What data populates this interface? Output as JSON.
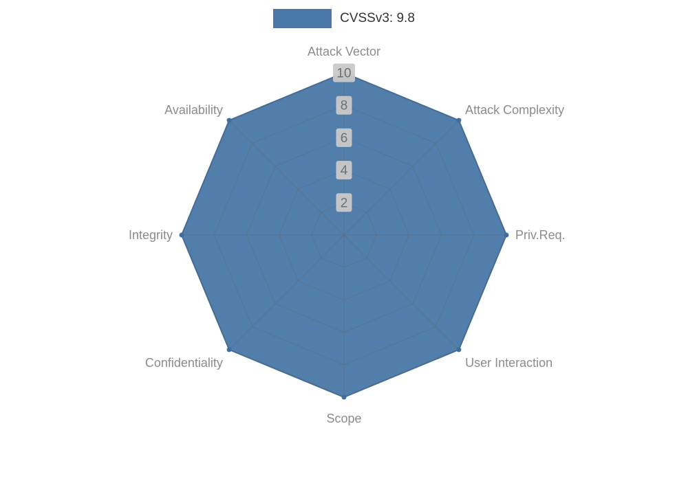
{
  "legend": {
    "label": "CVSSv3: 9.8",
    "color": "#4a79a8"
  },
  "chart_data": {
    "type": "radar",
    "title": "",
    "indicators": [
      "Attack Vector",
      "Attack Complexity",
      "Priv.Req.",
      "User Interaction",
      "Scope",
      "Confidentiality",
      "Integrity",
      "Availability"
    ],
    "axis_range": [
      0,
      10
    ],
    "ticks": [
      2,
      4,
      6,
      8,
      10
    ],
    "grid": true,
    "legend_position": "top",
    "series": [
      {
        "name": "CVSSv3: 9.8",
        "values": [
          10,
          10,
          10,
          10,
          10,
          10,
          10,
          10
        ]
      }
    ],
    "colors": {
      "fill": "#4a79a8",
      "stroke": "#3f6e9e",
      "grid": "#666666",
      "axis_label": "#8c8c8c",
      "tick_text": "#6f6f6f",
      "tick_bg": "#c9c9c9"
    }
  }
}
